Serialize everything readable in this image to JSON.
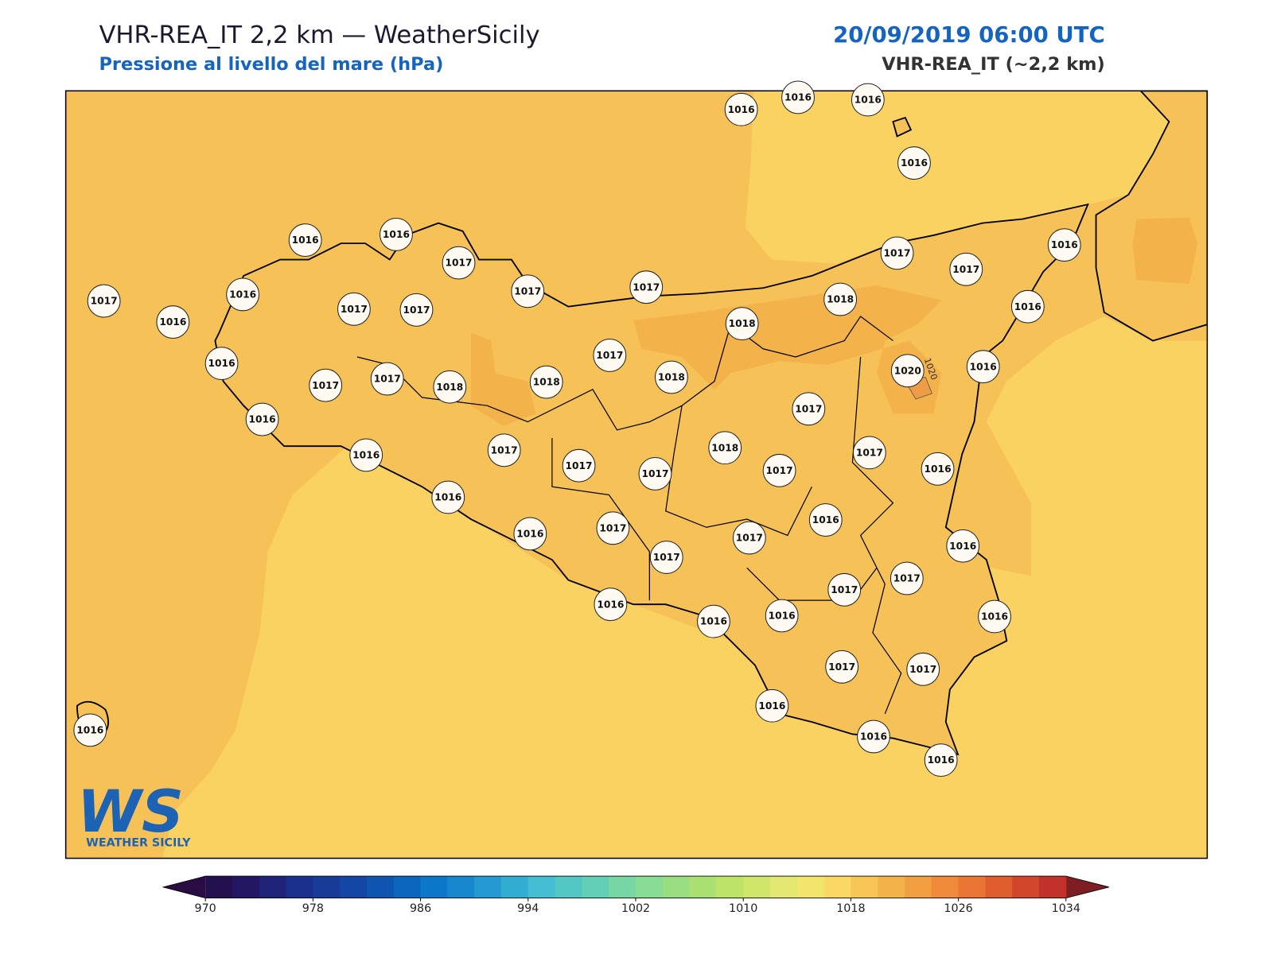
{
  "header": {
    "title": "VHR-REA_IT 2,2 km — WeatherSicily",
    "subtitle": "Pressione al livello del mare (hPa)",
    "datetime": "20/09/2019 06:00 UTC",
    "model": "VHR-REA_IT (~2,2 km)"
  },
  "map": {
    "stations": [
      1016,
      1016,
      1016,
      1016,
      1016,
      1016,
      1017,
      1017,
      1016,
      1016,
      1017,
      1017,
      1017,
      1017,
      1017,
      1017,
      1016,
      1016,
      1018,
      1018,
      1017,
      1016,
      1017,
      1017,
      1018,
      1018,
      1018,
      1020,
      1016,
      1016,
      1017,
      1016,
      1017,
      1017,
      1017,
      1018,
      1017,
      1017,
      1016,
      1016,
      1016,
      1017,
      1017,
      1017,
      1016,
      1016,
      1017,
      1017,
      1016,
      1016,
      1016,
      1016,
      1017,
      1017,
      1016,
      1016,
      1016,
      1016
    ],
    "contour_labels": [
      1020
    ],
    "logo": {
      "mark": "WS",
      "name": "WEATHER SICILY"
    }
  },
  "colorbar": {
    "lim": [
      970,
      1034
    ],
    "step": 2,
    "ticks": [
      970,
      978,
      986,
      994,
      1002,
      1010,
      1018,
      1026,
      1034
    ],
    "under_color": "#2a0c44",
    "over_color": "#7e1e22",
    "colors": [
      "#23104f",
      "#231763",
      "#20237a",
      "#1b2f8c",
      "#183b98",
      "#1346a5",
      "#0f55b1",
      "#0b66bd",
      "#0d77c9",
      "#1888ce",
      "#2599d2",
      "#33aed3",
      "#44bcd1",
      "#53c7c4",
      "#62d0b5",
      "#76d7a5",
      "#88dc93",
      "#9ade82",
      "#abe173",
      "#bde466",
      "#d0e66b",
      "#e2e871",
      "#f2e56c",
      "#fbd865",
      "#f8c655",
      "#f4b24a",
      "#f29f42",
      "#ef8a3a",
      "#ea7433",
      "#e05e2e",
      "#d2472b",
      "#c3322a"
    ]
  }
}
